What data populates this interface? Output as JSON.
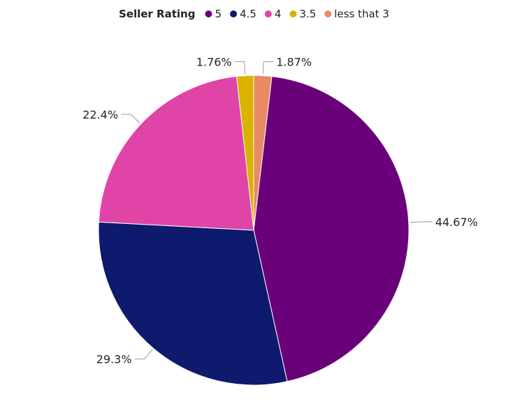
{
  "chart_data": {
    "type": "pie",
    "title": "",
    "legend": {
      "title": "Seller Rating",
      "placement": "top-center"
    },
    "categories": [
      "5",
      "4.5",
      "4",
      "3.5",
      "less that 3"
    ],
    "values": [
      44.67,
      29.3,
      22.4,
      1.76,
      1.87
    ],
    "labels": [
      "44.67%",
      "29.3%",
      "22.4%",
      "1.76%",
      "1.87%"
    ],
    "colors": [
      "#6b007b",
      "#0e1a6e",
      "#e044a7",
      "#d9b300",
      "#e88a63"
    ]
  }
}
